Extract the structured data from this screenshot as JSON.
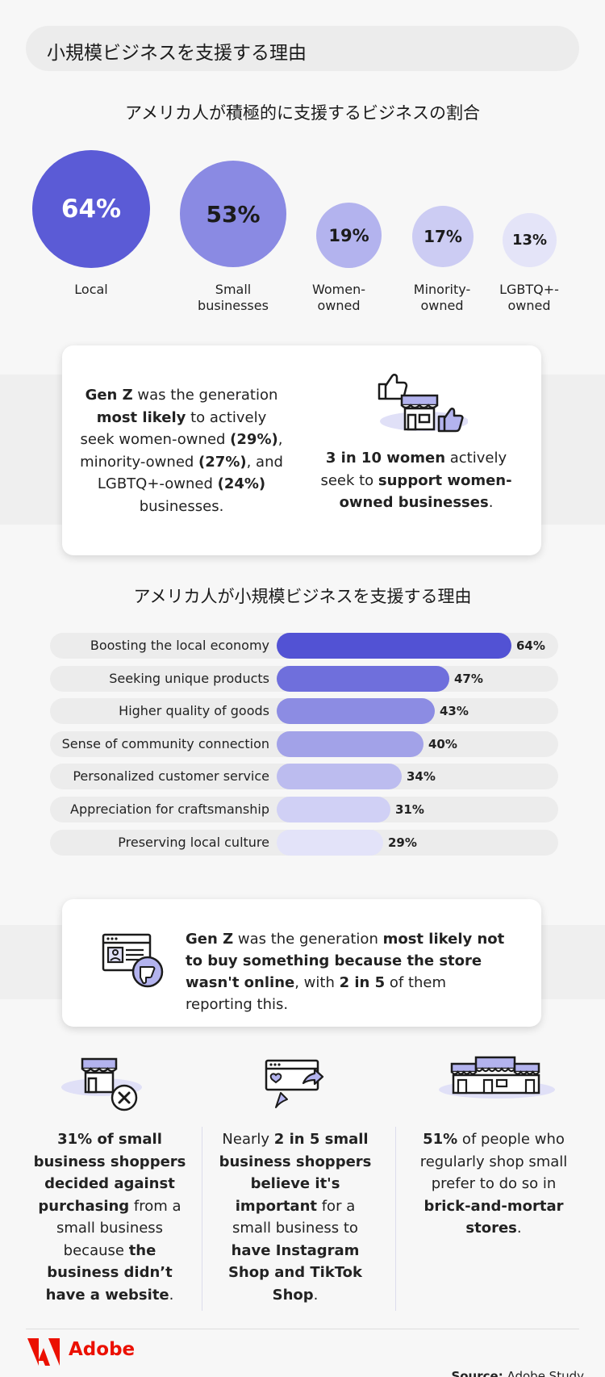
{
  "title": "小規模ビジネスを支援する理由",
  "circles_section": {
    "heading": "アメリカ人が積極的に支援するビジネスの割合",
    "items": [
      {
        "value": "64%",
        "label_lines": [
          "Local"
        ],
        "color": "#5b5bd6",
        "text_color": "#ffffff"
      },
      {
        "value": "53%",
        "label_lines": [
          "Small",
          "businesses"
        ],
        "color": "#8a8ae3",
        "text_color": "#1b1b1b"
      },
      {
        "value": "19%",
        "label_lines": [
          "Women-",
          "owned"
        ],
        "color": "#b3b3ee",
        "text_color": "#1b1b1b"
      },
      {
        "value": "17%",
        "label_lines": [
          "Minority-",
          "owned"
        ],
        "color": "#ccccf3",
        "text_color": "#1b1b1b"
      },
      {
        "value": "13%",
        "label_lines": [
          "LGBTQ+-",
          "owned"
        ],
        "color": "#e4e4f8",
        "text_color": "#1b1b1b"
      }
    ]
  },
  "card1": {
    "left": {
      "p1_b": "Gen Z",
      "p1": " was the generation ",
      "p2_b": "most likely",
      "p2": " to actively seek women-owned ",
      "p3_b": "(29%)",
      "p3": ", minority-owned ",
      "p4_b": "(27%)",
      "p4": ", and LGBTQ+-owned ",
      "p5_b": "(24%)",
      "p5": " businesses."
    },
    "right": {
      "p1_b": "3 in 10 women",
      "p2": " actively seek to ",
      "p3_b": "support women-owned businesses",
      "p4": "."
    },
    "icon": "store-thumbs-up-icon"
  },
  "bars_section": {
    "heading": "アメリカ人が小規模ビジネスを支援する理由",
    "items": [
      {
        "label": "Boosting the local economy",
        "value": 64,
        "display": "64%",
        "color": "#5252d4"
      },
      {
        "label": "Seeking unique products",
        "value": 47,
        "display": "47%",
        "color": "#6f6fdc"
      },
      {
        "label": "Higher quality of goods",
        "value": 43,
        "display": "43%",
        "color": "#8c8ce3"
      },
      {
        "label": "Sense of community connection",
        "value": 40,
        "display": "40%",
        "color": "#a2a2e8"
      },
      {
        "label": "Personalized customer service",
        "value": 34,
        "display": "34%",
        "color": "#bcbcef"
      },
      {
        "label": "Appreciation for craftsmanship",
        "value": 31,
        "display": "31%",
        "color": "#d0d0f5"
      },
      {
        "label": "Preserving local culture",
        "value": 29,
        "display": "29%",
        "color": "#e3e3f9"
      }
    ]
  },
  "card2": {
    "p1_b": "Gen Z",
    "p2": " was the generation ",
    "p3_b": "most likely not to buy something because the store wasn't online",
    "p4": ", with ",
    "p5_b": "2 in 5",
    "p6": " of them reporting this.",
    "icon": "browser-thumbs-down-icon"
  },
  "columns": [
    {
      "icon": "store-x-icon",
      "s1_b": "31% of small business shoppers decided against purchasing",
      "s2": " from a small business because ",
      "s3_b": "the business didn’t have a website",
      "s4": "."
    },
    {
      "icon": "social-shop-icon",
      "s1": "Nearly ",
      "s2_b": "2 in 5 small business shoppers believe it's important",
      "s3": " for a small business to ",
      "s4_b": "have Instagram Shop and TikTok Shop",
      "s5": "."
    },
    {
      "icon": "storefronts-icon",
      "s1_b": "51%",
      "s2": " of people who regularly shop small prefer to do so in ",
      "s3_b": "brick-and-mortar stores",
      "s4": "."
    }
  ],
  "footer": {
    "brand": "Adobe",
    "source_label": "Source:",
    "source_value": " Adobe Study",
    "brand_color": "#eb1000"
  }
}
